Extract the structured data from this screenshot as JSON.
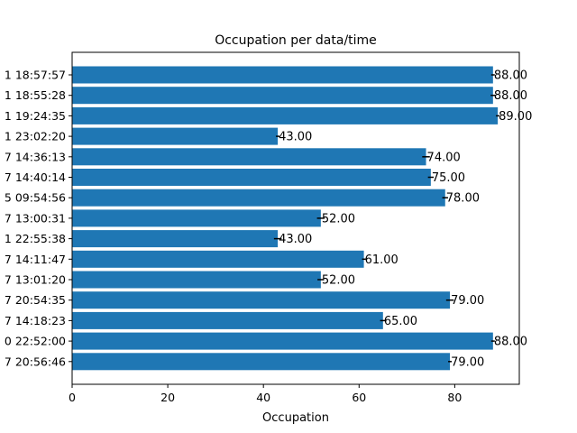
{
  "chart_data": {
    "type": "bar",
    "orientation": "horizontal",
    "title": "Occupation per data/time",
    "xlabel": "Occupation",
    "ylabel": "",
    "xlim": [
      0,
      93.5
    ],
    "xticks": [
      0,
      20,
      40,
      60,
      80
    ],
    "grid": false,
    "bar_color": "#1f77b4",
    "categories": [
      "1 18:57:57",
      "1 18:55:28",
      "1 19:24:35",
      "1 23:02:20",
      "7 14:36:13",
      "7 14:40:14",
      "5 09:54:56",
      "7 13:00:31",
      "1 22:55:38",
      "7 14:11:47",
      "7 13:01:20",
      "7 20:54:35",
      "7 14:18:23",
      "0 22:52:00",
      "7 20:56:46"
    ],
    "values": [
      88,
      88,
      89,
      43,
      74,
      75,
      78,
      52,
      43,
      61,
      52,
      79,
      65,
      88,
      79
    ],
    "errors": [
      0.3,
      0.5,
      0.3,
      0.3,
      0.8,
      0.6,
      0.6,
      0.8,
      0.8,
      0.3,
      0.7,
      0.8,
      0.6,
      0.3,
      0.3
    ],
    "data_labels": [
      "88.00",
      "88.00",
      "89.00",
      "43.00",
      "74.00",
      "75.00",
      "78.00",
      "52.00",
      "43.00",
      "61.00",
      "52.00",
      "79.00",
      "65.00",
      "88.00",
      "79.00"
    ]
  }
}
